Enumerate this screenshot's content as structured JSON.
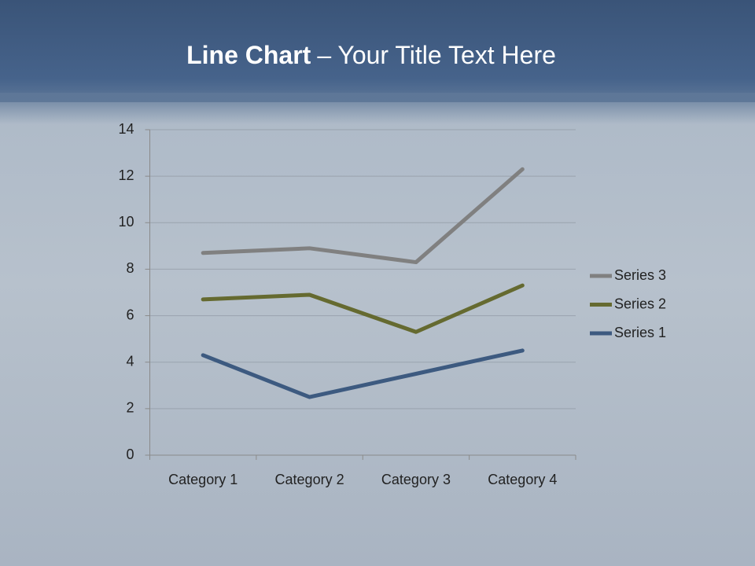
{
  "chart_data": {
    "type": "line",
    "stacked": true,
    "title": {
      "bold": "Line Chart",
      "text": "– Your Title Text Here"
    },
    "categories": [
      "Category 1",
      "Category 2",
      "Category 3",
      "Category 4"
    ],
    "series": [
      {
        "name": "Series 1",
        "color": "#3d5a80",
        "values": [
          4.3,
          2.5,
          3.5,
          4.5
        ]
      },
      {
        "name": "Series 2",
        "color": "#656a30",
        "values": [
          2.4,
          4.4,
          1.8,
          2.8
        ]
      },
      {
        "name": "Series 3",
        "color": "#808080",
        "values": [
          2,
          2,
          3,
          5
        ]
      }
    ],
    "ylim": [
      0,
      14
    ],
    "yticks": [
      0,
      2,
      4,
      6,
      8,
      10,
      12,
      14
    ],
    "grid": true,
    "legend": "right"
  }
}
